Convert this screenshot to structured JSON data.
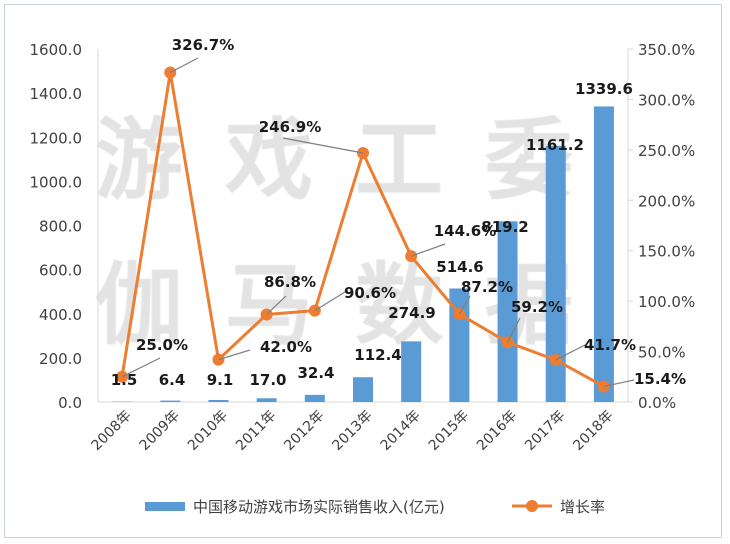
{
  "chart_data": {
    "type": "bar+line",
    "categories": [
      "2008年",
      "2009年",
      "2010年",
      "2011年",
      "2012年",
      "2013年",
      "2014年",
      "2015年",
      "2016年",
      "2017年",
      "2018年"
    ],
    "series": [
      {
        "name": "中国移动游戏市场实际销售收入(亿元)",
        "type": "bar",
        "axis": "left",
        "values": [
          1.5,
          6.4,
          9.1,
          17.0,
          32.4,
          112.4,
          274.9,
          514.6,
          819.2,
          1161.2,
          1339.6
        ],
        "labels": [
          "1.5",
          "6.4",
          "9.1",
          "17.0",
          "32.4",
          "112.4",
          "274.9",
          "514.6",
          "819.2",
          "1161.2",
          "1339.6"
        ],
        "color": "#5b9bd5"
      },
      {
        "name": "增长率",
        "type": "line",
        "axis": "right",
        "values": [
          25.0,
          326.7,
          42.0,
          86.8,
          90.6,
          246.9,
          144.6,
          87.2,
          59.2,
          41.7,
          15.4
        ],
        "labels": [
          "25.0%",
          "326.7%",
          "42.0%",
          "86.8%",
          "90.6%",
          "246.9%",
          "144.6%",
          "87.2%",
          "59.2%",
          "41.7%",
          "15.4%"
        ],
        "color": "#ed7d31"
      }
    ],
    "left_axis": {
      "range": [
        0,
        1600
      ],
      "ticks": [
        "0.0",
        "200.0",
        "400.0",
        "600.0",
        "800.0",
        "1000.0",
        "1200.0",
        "1400.0",
        "1600.0"
      ]
    },
    "right_axis": {
      "range": [
        0,
        350
      ],
      "ticks": [
        "0.0%",
        "50.0%",
        "100.0%",
        "150.0%",
        "200.0%",
        "250.0%",
        "300.0%",
        "350.0%"
      ]
    },
    "grid": false,
    "legend": "bottom",
    "watermark": [
      "游戏工委",
      "伽马数据"
    ]
  }
}
